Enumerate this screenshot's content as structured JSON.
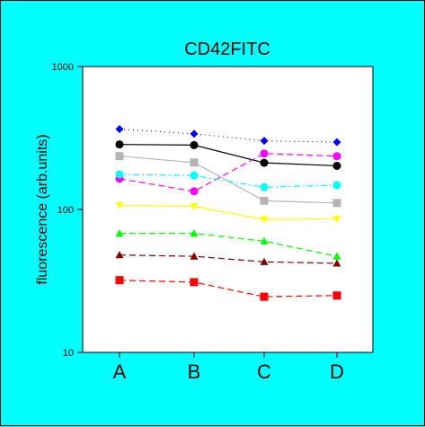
{
  "chart_data": {
    "type": "line",
    "title": "CD42FITC",
    "ylabel": "fluorescence (arb.units)",
    "xlabel": "",
    "categories": [
      "A",
      "B",
      "C",
      "D"
    ],
    "yscale": "log",
    "ylim": [
      10,
      1000
    ],
    "yticks": [
      "10",
      "100",
      "1000"
    ],
    "grid": false,
    "legend": "none",
    "series": [
      {
        "color": "#0000FF",
        "marker": "diamond",
        "dash": "dotted",
        "values": [
          365,
          338,
          302,
          296
        ]
      },
      {
        "color": "#000000",
        "marker": "circle",
        "dash": "solid",
        "values": [
          285,
          282,
          212,
          202
        ]
      },
      {
        "color": "#B4B4B4",
        "marker": "square",
        "dash": "solid",
        "values": [
          236,
          213,
          115,
          111
        ]
      },
      {
        "color": "#FF00FF",
        "marker": "circle",
        "dash": "dashed",
        "values": [
          164,
          134,
          246,
          236
        ]
      },
      {
        "color": "#00FFFF",
        "marker": "circle",
        "dash": "dashdot",
        "values": [
          176,
          173,
          143,
          148
        ]
      },
      {
        "color": "#FFFF00",
        "marker": "triangle-down",
        "dash": "solid",
        "values": [
          107,
          105,
          85,
          86
        ]
      },
      {
        "color": "#00FF00",
        "marker": "triangle",
        "dash": "dashed",
        "values": [
          68,
          68,
          60,
          47
        ]
      },
      {
        "color": "#800000",
        "marker": "triangle",
        "dash": "dashed",
        "values": [
          48,
          47,
          43,
          42
        ]
      },
      {
        "color": "#FF0000",
        "marker": "square",
        "dash": "dashed",
        "values": [
          32,
          31,
          24.5,
          25
        ]
      }
    ]
  }
}
